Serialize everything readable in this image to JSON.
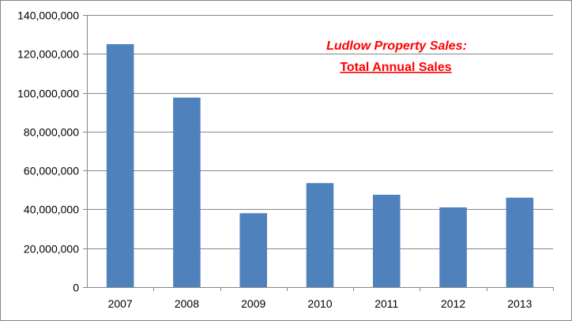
{
  "chart_data": {
    "type": "bar",
    "title": "Ludlow Property Sales:",
    "subtitle": "Total Annual Sales",
    "xlabel": "",
    "ylabel": "",
    "categories": [
      "2007",
      "2008",
      "2009",
      "2010",
      "2011",
      "2012",
      "2013"
    ],
    "values": [
      125000000,
      97500000,
      38000000,
      53500000,
      47500000,
      41000000,
      46000000
    ],
    "ylim": [
      0,
      140000000
    ],
    "yticks": [
      "0",
      "20,000,000",
      "40,000,000",
      "60,000,000",
      "80,000,000",
      "100,000,000",
      "120,000,000",
      "140,000,000"
    ],
    "grid": true,
    "legend": "none",
    "bar_color": "#4f81bd",
    "title_color": "#ff0000"
  }
}
